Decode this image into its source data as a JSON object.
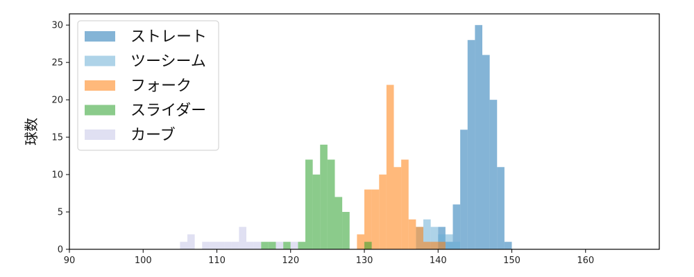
{
  "chart_data": {
    "type": "bar",
    "subtype": "histogram",
    "title": "",
    "xlabel": "",
    "ylabel": "球数",
    "xlim": [
      90,
      170
    ],
    "ylim": [
      0,
      31.5
    ],
    "xticks": [
      90,
      100,
      110,
      120,
      130,
      140,
      150,
      160
    ],
    "yticks": [
      0,
      5,
      10,
      15,
      20,
      25,
      30
    ],
    "grid": false,
    "legend_position": "top-left",
    "bin_width": 1,
    "opacity": 0.55,
    "series": [
      {
        "name": "ストレート",
        "color": "#1f77b4",
        "bins": [
          [
            140,
            3
          ],
          [
            141,
            1
          ],
          [
            142,
            6
          ],
          [
            143,
            16
          ],
          [
            144,
            28
          ],
          [
            145,
            30
          ],
          [
            146,
            26
          ],
          [
            147,
            20
          ],
          [
            148,
            11
          ],
          [
            149,
            1
          ]
        ]
      },
      {
        "name": "ツーシーム",
        "color": "#6baed6",
        "bins": [
          [
            137,
            3
          ],
          [
            138,
            4
          ],
          [
            139,
            3
          ],
          [
            140,
            2
          ],
          [
            141,
            2
          ],
          [
            142,
            1
          ]
        ]
      },
      {
        "name": "フォーク",
        "color": "#ff7f0e",
        "bins": [
          [
            129,
            2
          ],
          [
            130,
            8
          ],
          [
            131,
            8
          ],
          [
            132,
            10
          ],
          [
            133,
            22
          ],
          [
            134,
            11
          ],
          [
            135,
            12
          ],
          [
            136,
            4
          ],
          [
            137,
            3
          ],
          [
            138,
            1
          ],
          [
            139,
            1
          ],
          [
            140,
            1
          ]
        ]
      },
      {
        "name": "スライダー",
        "color": "#2ca02c",
        "bins": [
          [
            116,
            1
          ],
          [
            117,
            1
          ],
          [
            119,
            1
          ],
          [
            121,
            1
          ],
          [
            122,
            12
          ],
          [
            123,
            10
          ],
          [
            124,
            14
          ],
          [
            125,
            12
          ],
          [
            126,
            7
          ],
          [
            127,
            5
          ],
          [
            130,
            1
          ]
        ]
      },
      {
        "name": "カーブ",
        "color": "#c7c7e8",
        "bins": [
          [
            105,
            1
          ],
          [
            106,
            2
          ],
          [
            108,
            1
          ],
          [
            109,
            1
          ],
          [
            110,
            1
          ],
          [
            111,
            1
          ],
          [
            112,
            1
          ],
          [
            113,
            3
          ],
          [
            114,
            1
          ],
          [
            115,
            1
          ],
          [
            118,
            1
          ],
          [
            120,
            1
          ]
        ]
      }
    ]
  }
}
